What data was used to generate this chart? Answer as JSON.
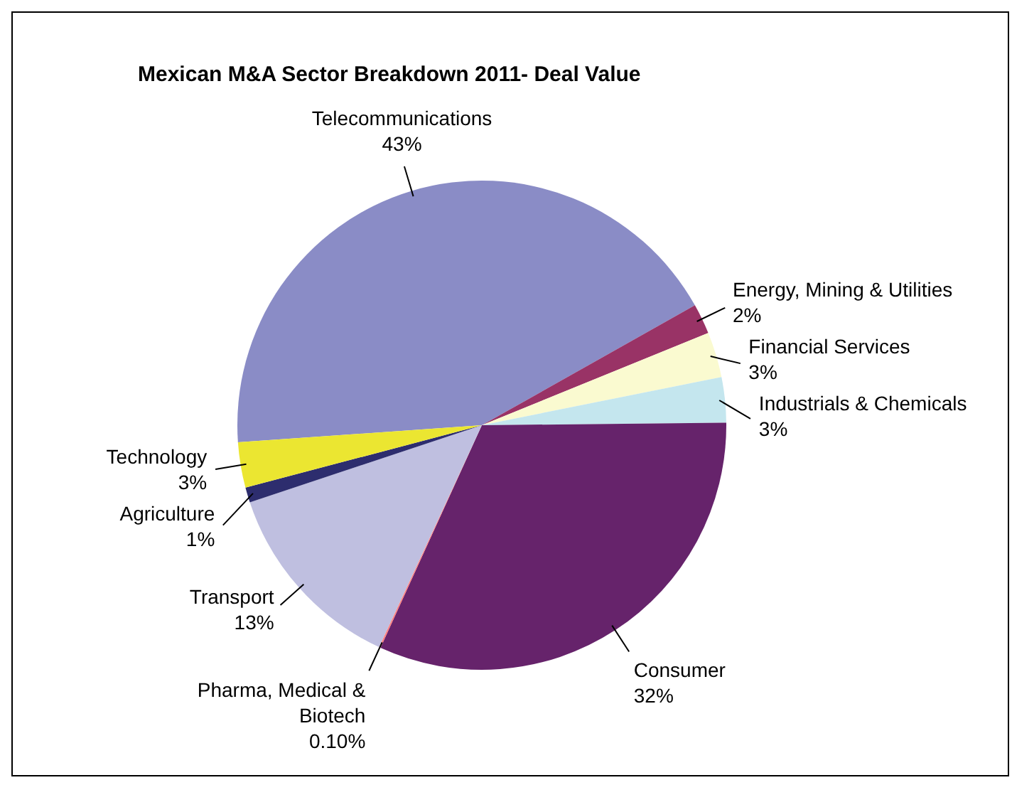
{
  "chart_data": {
    "type": "pie",
    "title": "Mexican M&A Sector Breakdown 2011- Deal Value",
    "categories": [
      "Telecommunications",
      "Energy, Mining & Utilities",
      "Financial Services",
      "Industrials & Chemicals",
      "Consumer",
      "Pharma, Medical & Biotech",
      "Transport",
      "Agriculture",
      "Technology"
    ],
    "values": [
      43,
      2,
      3,
      3,
      32,
      0.1,
      13,
      1,
      3
    ],
    "value_labels": [
      "43%",
      "2%",
      "3%",
      "3%",
      "32%",
      "0.10%",
      "13%",
      "1%",
      "3%"
    ],
    "colors": [
      "#8a8cc6",
      "#993366",
      "#fafad0",
      "#c4e6ee",
      "#66236b",
      "#ff7f7f",
      "#bfbfe0",
      "#2d2d6e",
      "#ebe631"
    ],
    "legend": false
  }
}
